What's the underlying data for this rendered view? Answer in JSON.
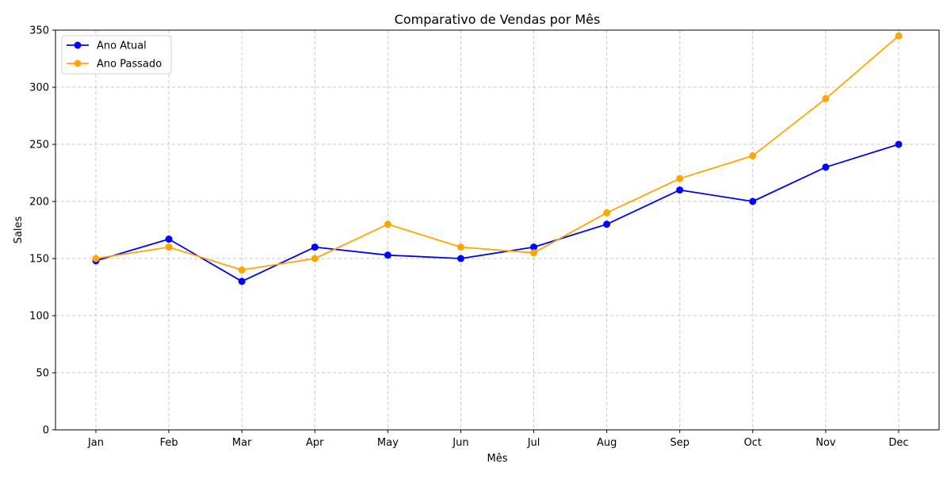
{
  "chart_data": {
    "type": "line",
    "title": "Comparativo de Vendas por Mês",
    "xlabel": "Mês",
    "ylabel": "Sales",
    "categories": [
      "Jan",
      "Feb",
      "Mar",
      "Apr",
      "May",
      "Jun",
      "Jul",
      "Aug",
      "Sep",
      "Oct",
      "Nov",
      "Dec"
    ],
    "ylim": [
      0,
      350
    ],
    "yticks": [
      0,
      50,
      100,
      150,
      200,
      250,
      300,
      350
    ],
    "grid": true,
    "legend_position": "upper-left",
    "series": [
      {
        "name": "Ano Atual",
        "color": "#0000ff",
        "marker": "circle",
        "values": [
          148,
          167,
          130,
          160,
          153,
          150,
          160,
          180,
          210,
          200,
          230,
          250
        ]
      },
      {
        "name": "Ano Passado",
        "color": "#ffa500",
        "marker": "circle",
        "values": [
          150,
          160,
          140,
          150,
          180,
          160,
          155,
          190,
          220,
          240,
          290,
          345
        ]
      }
    ]
  }
}
